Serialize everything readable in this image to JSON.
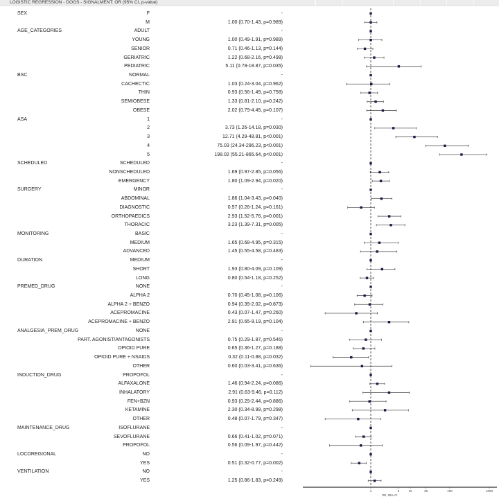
{
  "title": "LOGISTIC REGRESSION - DOGS - SIGNALMENT: OR (95% CI, p-value)",
  "chart_data": {
    "type": "forest",
    "xlabel": "OR, 95% CI",
    "xscale": "log",
    "xlim": [
      0.02,
      1250
    ],
    "xticks": [
      1,
      5,
      10,
      25,
      100,
      1000
    ],
    "xtick_labels": [
      "1",
      "5",
      "10",
      "25",
      "100",
      "1000"
    ],
    "reference_line": 1,
    "colors": {
      "point": "#1a1a4a",
      "ci": "#555555",
      "reference": "#333333"
    },
    "rows": [
      {
        "group": "SEX",
        "level": "F",
        "text": "-",
        "or": null,
        "lo": null,
        "hi": null
      },
      {
        "group": "",
        "level": "M",
        "text": "1.00 (0.70-1.43, p=0.989)",
        "or": 1.0,
        "lo": 0.7,
        "hi": 1.43
      },
      {
        "group": "AGE_CATEGORIES",
        "level": "ADULT",
        "text": "-",
        "or": null,
        "lo": null,
        "hi": null
      },
      {
        "group": "",
        "level": "YOUNG",
        "text": "1.00 (0.49-1.91, p=0.989)",
        "or": 1.0,
        "lo": 0.49,
        "hi": 1.91
      },
      {
        "group": "",
        "level": "SENIOR",
        "text": "0.71 (0.46-1.13, p=0.144)",
        "or": 0.71,
        "lo": 0.46,
        "hi": 1.13
      },
      {
        "group": "",
        "level": "GERIATRIC",
        "text": "1.22 (0.68-2.16, p=0.498)",
        "or": 1.22,
        "lo": 0.68,
        "hi": 2.16
      },
      {
        "group": "",
        "level": "PEDIATRIC",
        "text": "5.11 (0.78-18.87, p=0.035)",
        "or": 5.11,
        "lo": 0.78,
        "hi": 18.87
      },
      {
        "group": "BSC",
        "level": "NORMAL",
        "text": "-",
        "or": null,
        "lo": null,
        "hi": null
      },
      {
        "group": "",
        "level": "CACHECTIC",
        "text": "1.03 (0.24-3.04, p=0.962)",
        "or": 1.03,
        "lo": 0.24,
        "hi": 3.04
      },
      {
        "group": "",
        "level": "THIN",
        "text": "0.93 (0.56-1.49, p=0.758)",
        "or": 0.93,
        "lo": 0.56,
        "hi": 1.49
      },
      {
        "group": "",
        "level": "SEMIOBESE",
        "text": "1.33 (0.81-2.10, p=0.242)",
        "or": 1.33,
        "lo": 0.81,
        "hi": 2.1
      },
      {
        "group": "",
        "level": "OBESE",
        "text": "2.02 (0.79-4.45, p=0.107)",
        "or": 2.02,
        "lo": 0.79,
        "hi": 4.45
      },
      {
        "group": "ASA",
        "level": "1",
        "text": "-",
        "or": null,
        "lo": null,
        "hi": null
      },
      {
        "group": "",
        "level": "2",
        "text": "3.73 (1.26-14.18, p=0.030)",
        "or": 3.73,
        "lo": 1.26,
        "hi": 14.18
      },
      {
        "group": "",
        "level": "3",
        "text": "12.71 (4.29-48.81, p<0.001)",
        "or": 12.71,
        "lo": 4.29,
        "hi": 48.81
      },
      {
        "group": "",
        "level": "4",
        "text": "75.03 (24.34-296.23, p<0.001)",
        "or": 75.03,
        "lo": 24.34,
        "hi": 296.23
      },
      {
        "group": "",
        "level": "5",
        "text": "198.02 (55.21-865.64, p<0.001)",
        "or": 198.02,
        "lo": 55.21,
        "hi": 865.64
      },
      {
        "group": "SCHEDULED",
        "level": "SCHEDULED",
        "text": "-",
        "or": null,
        "lo": null,
        "hi": null
      },
      {
        "group": "",
        "level": "NONSCHEDULED",
        "text": "1.69 (0.97-2.85, p=0.056)",
        "or": 1.69,
        "lo": 0.97,
        "hi": 2.85
      },
      {
        "group": "",
        "level": "EMERGENCY",
        "text": "1.80 (1.09-2.94, p=0.020)",
        "or": 1.8,
        "lo": 1.09,
        "hi": 2.94
      },
      {
        "group": "SURGERY",
        "level": "MINOR",
        "text": "-",
        "or": null,
        "lo": null,
        "hi": null
      },
      {
        "group": "",
        "level": "ABDOMINAL",
        "text": "1.86 (1.04-3.43, p=0.040)",
        "or": 1.86,
        "lo": 1.04,
        "hi": 3.43
      },
      {
        "group": "",
        "level": "DIAGNOSTIC",
        "text": "0.57 (0.26-1.24, p=0.161)",
        "or": 0.57,
        "lo": 0.26,
        "hi": 1.24
      },
      {
        "group": "",
        "level": "ORTHOPAEDICS",
        "text": "2.93 (1.52-5.76, p=0.001)",
        "or": 2.93,
        "lo": 1.52,
        "hi": 5.76
      },
      {
        "group": "",
        "level": "THORACIC",
        "text": "3.23 (1.39-7.31, p=0.005)",
        "or": 3.23,
        "lo": 1.39,
        "hi": 7.31
      },
      {
        "group": "MONITORING",
        "level": "BASIC",
        "text": "-",
        "or": null,
        "lo": null,
        "hi": null
      },
      {
        "group": "",
        "level": "MEDIUM",
        "text": "1.65 (0.68-4.95, p=0.315)",
        "or": 1.65,
        "lo": 0.68,
        "hi": 4.95
      },
      {
        "group": "",
        "level": "ADVANCED",
        "text": "1.45 (0.55-4.58, p=0.483)",
        "or": 1.45,
        "lo": 0.55,
        "hi": 4.58
      },
      {
        "group": "DURATION",
        "level": "MEDIUM",
        "text": "-",
        "or": null,
        "lo": null,
        "hi": null
      },
      {
        "group": "",
        "level": "SHORT",
        "text": "1.93 (0.80-4.09, p=0.109)",
        "or": 1.93,
        "lo": 0.8,
        "hi": 4.09
      },
      {
        "group": "",
        "level": "LONG",
        "text": "0.80 (0.54-1.18, p=0.252)",
        "or": 0.8,
        "lo": 0.54,
        "hi": 1.18
      },
      {
        "group": "PREMED_DRUG",
        "level": "NONE",
        "text": "-",
        "or": null,
        "lo": null,
        "hi": null
      },
      {
        "group": "",
        "level": "ALPHA 2",
        "text": "0.70 (0.45-1.08, p=0.106)",
        "or": 0.7,
        "lo": 0.45,
        "hi": 1.08
      },
      {
        "group": "",
        "level": "ALPHA 2 + BENZO",
        "text": "0.94 (0.39-2.02, p=0.873)",
        "or": 0.94,
        "lo": 0.39,
        "hi": 2.02
      },
      {
        "group": "",
        "level": "ACEPROMACINE",
        "text": "0.43 (0.07-1.47, p=0.260)",
        "or": 0.43,
        "lo": 0.07,
        "hi": 1.47
      },
      {
        "group": "",
        "level": "ACEPROMACINE +  BENZO",
        "text": "2.91 (0.65-9.19, p=0.104)",
        "or": 2.91,
        "lo": 0.65,
        "hi": 9.19
      },
      {
        "group": "ANALGESIA_PREM_DRUG",
        "level": "NONE",
        "text": "-",
        "or": null,
        "lo": null,
        "hi": null
      },
      {
        "group": "",
        "level": "PART. AGONIST/ANTAGONISTS",
        "text": "0.75 (0.29-1.87, p=0.546)",
        "or": 0.75,
        "lo": 0.29,
        "hi": 1.87
      },
      {
        "group": "",
        "level": "OPIOID PURE",
        "text": "0.65 (0.36-1.27, p=0.188)",
        "or": 0.65,
        "lo": 0.36,
        "hi": 1.27
      },
      {
        "group": "",
        "level": "OPIOID PURE + NSAIDS",
        "text": "0.32 (0.11-0.88, p=0.032)",
        "or": 0.32,
        "lo": 0.11,
        "hi": 0.88
      },
      {
        "group": "",
        "level": "OTHER",
        "text": "0.60 (0.03-3.41, p=0.636)",
        "or": 0.6,
        "lo": 0.03,
        "hi": 3.41
      },
      {
        "group": "INDUCTION_DRUG",
        "level": "PROPOFOL",
        "text": "-",
        "or": null,
        "lo": null,
        "hi": null
      },
      {
        "group": "",
        "level": "ALFAXALONE",
        "text": "1.46 (0.94-2.24, p=0.086)",
        "or": 1.46,
        "lo": 0.94,
        "hi": 2.24
      },
      {
        "group": "",
        "level": "INHALATORY",
        "text": "2.91 (0.63-9.46, p=0.112)",
        "or": 2.91,
        "lo": 0.63,
        "hi": 9.46
      },
      {
        "group": "",
        "level": "FEN+BZN",
        "text": "0.93 (0.29-2.44, p=0.886)",
        "or": 0.93,
        "lo": 0.29,
        "hi": 2.44
      },
      {
        "group": "",
        "level": "KETAMINE",
        "text": "2.30 (0.34-8.99, p=0.298)",
        "or": 2.3,
        "lo": 0.34,
        "hi": 8.99
      },
      {
        "group": "",
        "level": "OTHER",
        "text": "0.48 (0.07-1.79, p=0.347)",
        "or": 0.48,
        "lo": 0.07,
        "hi": 1.79
      },
      {
        "group": "MAINTENANCE_DRUG",
        "level": "ISOFLURANE",
        "text": "-",
        "or": null,
        "lo": null,
        "hi": null
      },
      {
        "group": "",
        "level": "SEVOFLURANE",
        "text": "0.66 (0.41-1.02, p=0.071)",
        "or": 0.66,
        "lo": 0.41,
        "hi": 1.02
      },
      {
        "group": "",
        "level": "PROPOFOL",
        "text": "0.56 (0.09-1.97, p=0.442)",
        "or": 0.56,
        "lo": 0.09,
        "hi": 1.97
      },
      {
        "group": "LOCOREGIONAL",
        "level": "NO",
        "text": "-",
        "or": null,
        "lo": null,
        "hi": null
      },
      {
        "group": "",
        "level": "YES",
        "text": "0.51 (0.32-0.77, p=0.002)",
        "or": 0.51,
        "lo": 0.32,
        "hi": 0.77
      },
      {
        "group": "VENTILATION",
        "level": "NO",
        "text": "-",
        "or": null,
        "lo": null,
        "hi": null
      },
      {
        "group": "",
        "level": "YES",
        "text": "1.25 (0.86-1.83, p=0.249)",
        "or": 1.25,
        "lo": 0.86,
        "hi": 1.83
      }
    ]
  }
}
